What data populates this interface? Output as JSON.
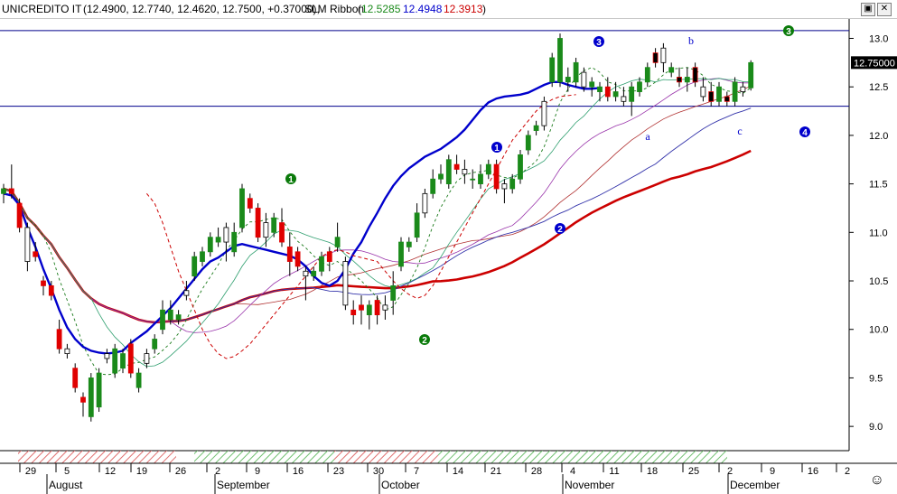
{
  "header": {
    "symbol": "UNICREDITO IT",
    "ohlc": "(12.4900, 12.7740, 12.4620, 12.7500, +0.37000),",
    "indicator": "SLM Ribbon",
    "ribbon_open": "(",
    "ribbon_v1": "12.5285",
    "ribbon_v2": "12.4948",
    "ribbon_v3": "12.3913",
    "ribbon_close": ")",
    "colors": {
      "v1": "#1a8a1a",
      "v2": "#0000cc",
      "v3": "#cc0000"
    }
  },
  "window_buttons": [
    "restore-icon",
    "close-icon"
  ],
  "last_price_label": "12.75000",
  "smiley": "☺",
  "chart_data": {
    "type": "candlestick",
    "ylim": [
      8.75,
      13.2
    ],
    "yticks": [
      "13.0",
      "12.5",
      "12.0",
      "11.5",
      "11.0",
      "10.5",
      "10.0",
      "9.5",
      "9.0"
    ],
    "xticks": [
      "29",
      "5",
      "12",
      "19",
      "26",
      "2",
      "9",
      "16",
      "23",
      "30",
      "7",
      "14",
      "21",
      "28",
      "4",
      "11",
      "18",
      "25",
      "2",
      "9",
      "16",
      "2"
    ],
    "months": [
      "August",
      "September",
      "October",
      "November",
      "December"
    ],
    "hlines": [
      13.08,
      12.3
    ],
    "candles": [
      [
        11.4,
        11.5,
        11.3,
        11.45
      ],
      [
        11.45,
        11.7,
        11.35,
        11.4
      ],
      [
        11.3,
        11.35,
        11.0,
        11.05
      ],
      [
        11.05,
        11.1,
        10.6,
        10.7
      ],
      [
        10.8,
        10.9,
        10.7,
        10.75
      ],
      [
        10.5,
        10.55,
        10.35,
        10.45
      ],
      [
        10.45,
        10.5,
        10.3,
        10.35
      ],
      [
        10.0,
        10.1,
        9.75,
        9.8
      ],
      [
        9.8,
        9.85,
        9.7,
        9.75
      ],
      [
        9.6,
        9.65,
        9.35,
        9.4
      ],
      [
        9.3,
        9.35,
        9.1,
        9.25
      ],
      [
        9.1,
        9.55,
        9.05,
        9.5
      ],
      [
        9.2,
        9.6,
        9.15,
        9.55
      ],
      [
        9.7,
        9.8,
        9.65,
        9.75
      ],
      [
        9.55,
        9.85,
        9.5,
        9.8
      ],
      [
        9.6,
        9.8,
        9.55,
        9.75
      ],
      [
        9.85,
        9.9,
        9.5,
        9.55
      ],
      [
        9.4,
        9.6,
        9.35,
        9.55
      ],
      [
        9.65,
        9.8,
        9.6,
        9.75
      ],
      [
        9.8,
        9.95,
        9.75,
        9.9
      ],
      [
        10.0,
        10.3,
        9.95,
        10.2
      ],
      [
        10.1,
        10.3,
        10.05,
        10.2
      ],
      [
        10.1,
        10.2,
        10.05,
        10.15
      ],
      [
        10.35,
        10.5,
        10.3,
        10.4
      ],
      [
        10.55,
        10.8,
        10.5,
        10.75
      ],
      [
        10.7,
        10.85,
        10.65,
        10.8
      ],
      [
        10.8,
        11.0,
        10.75,
        10.95
      ],
      [
        10.9,
        11.05,
        10.85,
        10.95
      ],
      [
        10.9,
        11.1,
        10.7,
        11.05
      ],
      [
        10.8,
        11.1,
        10.75,
        11.0
      ],
      [
        11.05,
        11.5,
        11.0,
        11.45
      ],
      [
        11.35,
        11.4,
        11.2,
        11.25
      ],
      [
        11.25,
        11.3,
        10.9,
        10.95
      ],
      [
        10.95,
        11.2,
        10.85,
        11.1
      ],
      [
        11.0,
        11.2,
        10.95,
        11.15
      ],
      [
        11.1,
        11.25,
        10.85,
        10.9
      ],
      [
        10.85,
        11.0,
        10.55,
        10.7
      ],
      [
        10.8,
        10.85,
        10.6,
        10.65
      ],
      [
        10.6,
        10.65,
        10.3,
        10.55
      ],
      [
        10.55,
        10.65,
        10.5,
        10.6
      ],
      [
        10.6,
        10.8,
        10.55,
        10.75
      ],
      [
        10.8,
        10.85,
        10.6,
        10.7
      ],
      [
        10.85,
        11.1,
        10.8,
        10.95
      ],
      [
        10.7,
        10.75,
        10.2,
        10.25
      ],
      [
        10.2,
        10.3,
        10.05,
        10.15
      ],
      [
        10.25,
        10.35,
        10.05,
        10.2
      ],
      [
        10.15,
        10.3,
        10.0,
        10.25
      ],
      [
        10.3,
        10.35,
        10.05,
        10.15
      ],
      [
        10.25,
        10.35,
        10.1,
        10.2
      ],
      [
        10.3,
        10.6,
        10.15,
        10.45
      ],
      [
        10.65,
        10.95,
        10.6,
        10.9
      ],
      [
        10.85,
        10.95,
        10.8,
        10.9
      ],
      [
        10.95,
        11.3,
        10.9,
        11.2
      ],
      [
        11.2,
        11.45,
        11.15,
        11.4
      ],
      [
        11.4,
        11.65,
        11.35,
        11.55
      ],
      [
        11.55,
        11.7,
        11.5,
        11.6
      ],
      [
        11.5,
        11.8,
        11.45,
        11.75
      ],
      [
        11.7,
        11.8,
        11.6,
        11.65
      ],
      [
        11.65,
        11.75,
        11.5,
        11.6
      ],
      [
        11.55,
        11.65,
        11.45,
        11.55
      ],
      [
        11.5,
        11.7,
        11.45,
        11.6
      ],
      [
        11.6,
        11.75,
        11.55,
        11.7
      ],
      [
        11.7,
        11.75,
        11.4,
        11.45
      ],
      [
        11.45,
        11.55,
        11.3,
        11.5
      ],
      [
        11.45,
        11.6,
        11.4,
        11.55
      ],
      [
        11.55,
        11.85,
        11.5,
        11.8
      ],
      [
        11.85,
        12.05,
        11.8,
        12.0
      ],
      [
        12.05,
        12.15,
        12.0,
        12.1
      ],
      [
        12.1,
        12.4,
        12.05,
        12.35
      ],
      [
        12.55,
        12.85,
        12.5,
        12.8
      ],
      [
        12.55,
        13.05,
        12.5,
        13.0
      ],
      [
        12.55,
        12.7,
        12.45,
        12.6
      ],
      [
        12.55,
        12.8,
        12.5,
        12.75
      ],
      [
        12.65,
        12.7,
        12.45,
        12.5
      ],
      [
        12.5,
        12.6,
        12.4,
        12.55
      ],
      [
        12.45,
        12.55,
        12.35,
        12.5
      ],
      [
        12.5,
        12.6,
        12.35,
        12.4
      ],
      [
        12.4,
        12.55,
        12.35,
        12.45
      ],
      [
        12.4,
        12.5,
        12.3,
        12.35
      ],
      [
        12.35,
        12.55,
        12.2,
        12.5
      ],
      [
        12.45,
        12.6,
        12.4,
        12.55
      ],
      [
        12.55,
        12.75,
        12.5,
        12.7
      ],
      [
        12.85,
        12.9,
        12.7,
        12.75
      ],
      [
        12.75,
        12.95,
        12.65,
        12.9
      ],
      [
        12.65,
        12.75,
        12.6,
        12.7
      ],
      [
        12.6,
        12.7,
        12.5,
        12.55
      ],
      [
        12.55,
        12.7,
        12.45,
        12.6
      ],
      [
        12.7,
        12.75,
        12.5,
        12.55
      ],
      [
        12.5,
        12.6,
        12.35,
        12.4
      ],
      [
        12.45,
        12.55,
        12.3,
        12.35
      ],
      [
        12.35,
        12.55,
        12.3,
        12.5
      ],
      [
        12.4,
        12.45,
        12.3,
        12.35
      ],
      [
        12.35,
        12.6,
        12.3,
        12.55
      ],
      [
        12.5,
        12.55,
        12.4,
        12.45
      ],
      [
        12.49,
        12.774,
        12.462,
        12.75
      ]
    ],
    "series": [
      {
        "color": "#0000cc",
        "width": 2.4,
        "dash": "",
        "values": [
          11.4,
          11.38,
          11.28,
          11.05,
          10.85,
          10.62,
          10.42,
          10.2,
          10.02,
          9.9,
          9.82,
          9.78,
          9.76,
          9.75,
          9.76,
          9.78,
          9.86,
          9.92,
          9.98,
          10.06,
          10.14,
          10.22,
          10.32,
          10.42,
          10.52,
          10.62,
          10.7,
          10.74,
          10.8,
          10.86,
          10.88,
          10.86,
          10.84,
          10.82,
          10.8,
          10.78,
          10.76,
          10.72,
          10.65,
          10.55,
          10.48,
          10.45,
          10.5,
          10.62,
          10.78,
          10.9,
          11.06,
          11.2,
          11.35,
          11.48,
          11.58,
          11.66,
          11.72,
          11.78,
          11.82,
          11.86,
          11.92,
          11.98,
          12.06,
          12.16,
          12.26,
          12.34,
          12.38,
          12.4,
          12.41,
          12.42,
          12.44,
          12.48,
          12.52,
          12.55,
          12.55,
          12.52,
          12.5,
          12.48,
          12.48,
          12.49
        ]
      },
      {
        "color": "#cc0000",
        "width": 1,
        "dash": "4 3",
        "values": [
          11.4,
          11.3,
          11.1,
          10.85,
          10.6,
          10.4,
          10.2,
          10.0,
          9.85,
          9.75,
          9.7,
          9.72,
          9.78,
          9.85,
          9.95,
          10.05,
          10.15,
          10.25,
          10.35,
          10.45,
          10.55,
          10.65,
          10.75,
          10.8,
          10.82,
          10.8,
          10.76,
          10.74,
          10.72,
          10.7,
          10.6,
          10.5,
          10.42,
          10.36,
          10.32,
          10.35,
          10.45,
          10.6,
          10.75,
          10.9,
          11.05,
          11.2,
          11.35,
          11.5,
          11.65,
          11.8,
          11.95,
          12.05,
          12.15,
          12.25,
          12.32,
          12.37,
          12.4,
          12.41,
          12.42
        ]
      }
    ]
  },
  "annotations": [
    {
      "label": "1",
      "style": "filled-green"
    },
    {
      "label": "2",
      "style": "filled-green"
    },
    {
      "label": "1",
      "style": "filled-blue"
    },
    {
      "label": "2",
      "style": "filled-blue"
    },
    {
      "label": "3",
      "style": "filled-blue"
    },
    {
      "label": "3",
      "style": "filled-green"
    },
    {
      "label": "4",
      "style": "filled-blue"
    },
    {
      "label": "a",
      "style": "text-blue"
    },
    {
      "label": "b",
      "style": "text-blue"
    },
    {
      "label": "c",
      "style": "text-blue"
    }
  ]
}
